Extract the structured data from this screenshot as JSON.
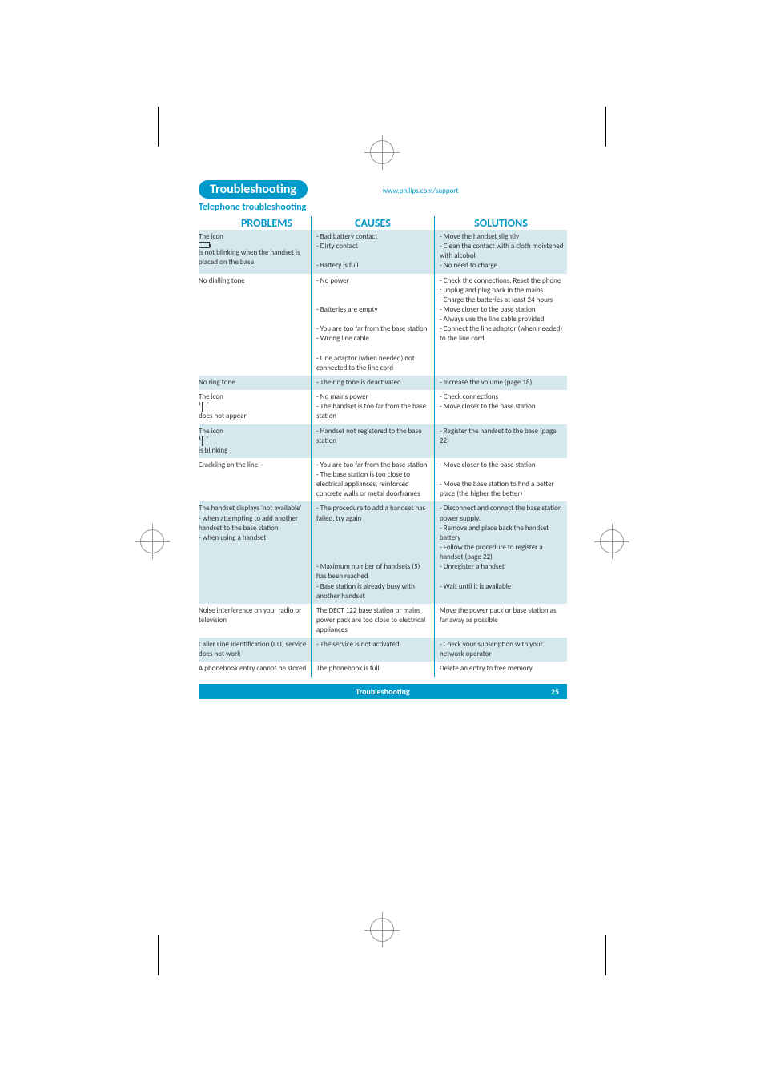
{
  "header": {
    "pill": "Troubleshooting",
    "url": "www.philips.com/support",
    "subtitle": "Telephone troubleshooting"
  },
  "columns": {
    "problems": "PROBLEMS",
    "causes": "CAUSES",
    "solutions": "SOLUTIONS"
  },
  "rows": [
    {
      "shade": true,
      "problem": [
        "The icon [battery] is not blinking when the handset is placed on the base"
      ],
      "causes": [
        "- Bad battery contact",
        "- Dirty contact",
        "",
        "- Battery is full"
      ],
      "solutions": [
        "- Move the handset slightly",
        "- Clean the contact with a cloth moistened with alcohol",
        "- No need to charge"
      ]
    },
    {
      "shade": false,
      "problem": [
        "No dialling tone"
      ],
      "causes": [
        "- No power",
        "",
        "",
        "- Batteries are empty",
        "",
        "- You are too far from the base station",
        "- Wrong line cable",
        "",
        "- Line adaptor (when needed) not connected to the line cord"
      ],
      "solutions": [
        "- Check the connections. Reset the phone : unplug and plug back in the mains",
        "- Charge the batteries at least 24 hours",
        "- Move closer to the base station",
        "- Always use the line cable provided",
        "- Connect the line adaptor (when needed) to the line cord"
      ]
    },
    {
      "shade": true,
      "problem": [
        "No ring tone"
      ],
      "causes": [
        "- The ring tone is deactivated"
      ],
      "solutions": [
        "- Increase the volume (page 18)"
      ]
    },
    {
      "shade": false,
      "problem": [
        "The icon [antenna] does not appear"
      ],
      "causes": [
        "- No mains power",
        "- The handset is too far from the base station"
      ],
      "solutions": [
        "- Check connections",
        "- Move closer to the base station"
      ]
    },
    {
      "shade": true,
      "problem": [
        "The icon [antenna] is blinking"
      ],
      "causes": [
        "- Handset not registered to the base station"
      ],
      "solutions": [
        "- Register the handset to the base (page 22)"
      ]
    },
    {
      "shade": false,
      "problem": [
        "Crackling on the line"
      ],
      "causes": [
        "- You are too far from the base station",
        "- The base station is too close to electrical appliances, reinforced concrete walls or metal doorframes"
      ],
      "solutions": [
        "- Move closer to the base station",
        "",
        "- Move the base station to find a better place (the higher the better)"
      ]
    },
    {
      "shade": true,
      "problem": [
        "The handset displays 'not available'",
        "- when attempting to add another handset to the base station",
        "- when using a handset"
      ],
      "causes": [
        "- The procedure to add a handset has failed, try again",
        "",
        "",
        "",
        "",
        "- Maximum number of handsets (5) has been reached",
        "- Base station is already busy with another handset"
      ],
      "solutions": [
        "- Disconnect and connect the base station power supply.",
        "- Remove and place back the handset battery",
        "- Follow the procedure to register a handset (page 22)",
        "- Unregister a handset",
        "",
        "- Wait until it is available"
      ]
    },
    {
      "shade": false,
      "problem": [
        "Noise interference on your radio or television"
      ],
      "causes": [
        "The DECT 122 base station or mains power pack are too close to electrical appliances"
      ],
      "solutions": [
        "Move the power pack or base station as far away as possible"
      ]
    },
    {
      "shade": true,
      "problem": [
        "Caller Line Identification (CLI) service does not work"
      ],
      "causes": [
        "- The service is not activated"
      ],
      "solutions": [
        "- Check your subscription with your network operator"
      ]
    },
    {
      "shade": false,
      "problem": [
        "A phonebook entry cannot be stored"
      ],
      "causes": [
        "The phonebook is full"
      ],
      "solutions": [
        "Delete an entry to free memory"
      ]
    }
  ],
  "footer": {
    "label": "Troubleshooting",
    "page": "25"
  },
  "colors": {
    "accent": "#0099cc",
    "shade": "#d4e8ee",
    "text": "#333333",
    "background": "#ffffff"
  }
}
